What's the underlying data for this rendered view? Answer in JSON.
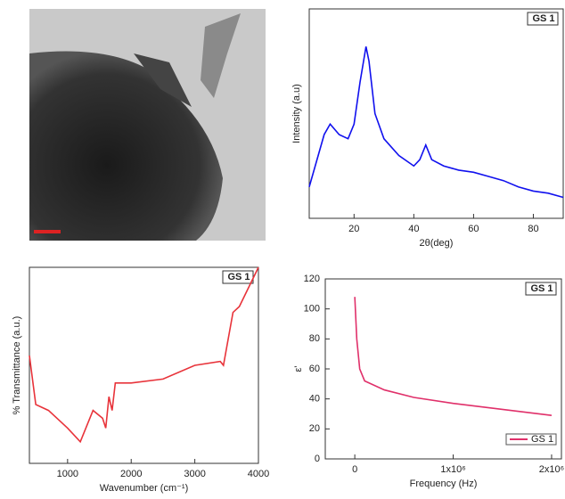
{
  "chart_data": [
    {
      "type": "line",
      "annotation": "GS 1",
      "xlabel": "2θ(deg)",
      "ylabel": "Intensity (a.u)",
      "xlim": [
        5,
        90
      ],
      "xticks": [
        20,
        40,
        60,
        80
      ],
      "ylim": [
        0,
        100
      ],
      "series": [
        {
          "name": "GS 1",
          "color": "#1010ee",
          "x": [
            5,
            7,
            10,
            12,
            15,
            18,
            20,
            22,
            24,
            25,
            27,
            30,
            35,
            40,
            42,
            44,
            46,
            50,
            55,
            60,
            65,
            70,
            75,
            80,
            85,
            90
          ],
          "values": [
            15,
            25,
            40,
            45,
            40,
            38,
            45,
            65,
            82,
            75,
            50,
            38,
            30,
            25,
            28,
            35,
            28,
            25,
            23,
            22,
            20,
            18,
            15,
            13,
            12,
            10
          ]
        }
      ]
    },
    {
      "type": "line",
      "annotation": "GS 1",
      "xlabel": "Wavenumber (cm⁻¹)",
      "ylabel": "% Transmittance (a.u.)",
      "xlim": [
        400,
        4000
      ],
      "xticks": [
        1000,
        2000,
        3000,
        4000
      ],
      "ylim": [
        0,
        100
      ],
      "series": [
        {
          "name": "GS 1",
          "color": "#e8333a",
          "x": [
            400,
            500,
            700,
            1000,
            1200,
            1400,
            1550,
            1600,
            1650,
            1700,
            1750,
            2000,
            2500,
            3000,
            3400,
            3450,
            3600,
            3700,
            4000
          ],
          "values": [
            55,
            30,
            27,
            18,
            11,
            27,
            23,
            18,
            34,
            27,
            41,
            41,
            43,
            50,
            52,
            50,
            77,
            80,
            100
          ]
        }
      ]
    },
    {
      "type": "line",
      "annotation": "GS 1",
      "xlabel": "Frequency (Hz)",
      "ylabel": "ε'",
      "xlim": [
        -300000,
        2100000
      ],
      "xticks": [
        0,
        {
          "value": 1000000,
          "label": "1x10⁶"
        },
        {
          "value": 2000000,
          "label": "2x10⁶"
        }
      ],
      "ylim": [
        0,
        120
      ],
      "yticks": [
        0,
        20,
        40,
        60,
        80,
        100,
        120
      ],
      "legend": "lower right",
      "series": [
        {
          "name": "GS 1",
          "color": "#e0306a",
          "x": [
            0,
            20000,
            50000,
            100000,
            300000,
            600000,
            1000000,
            1500000,
            2000000
          ],
          "values": [
            108,
            80,
            60,
            52,
            46,
            41,
            37,
            33,
            29
          ]
        }
      ]
    }
  ]
}
